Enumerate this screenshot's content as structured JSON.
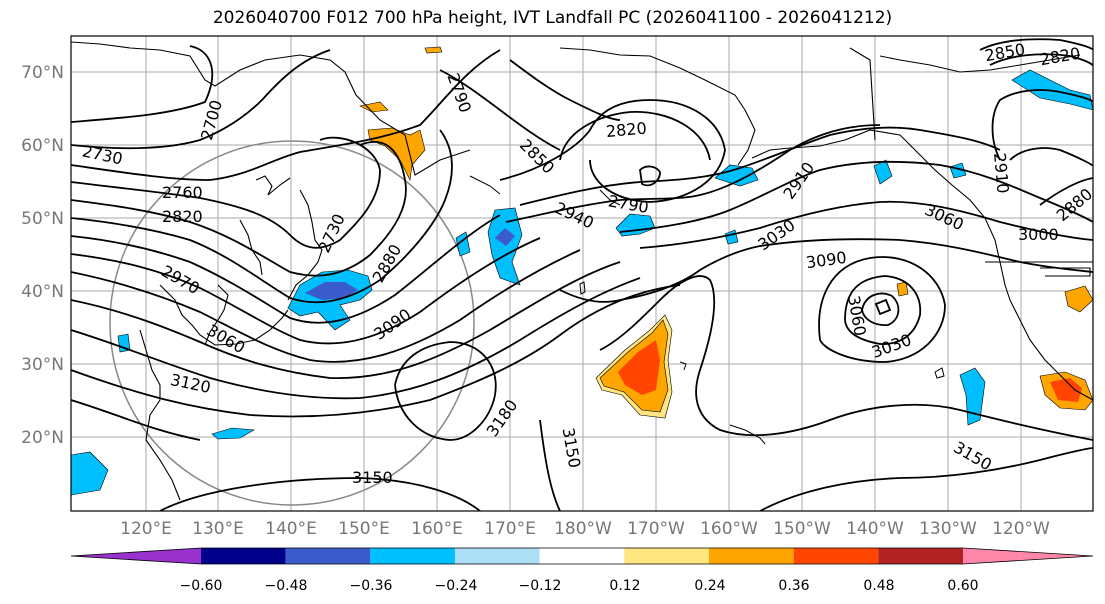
{
  "title": "2026040700 F012 700 hPa height, IVT Landfall PC (2026041100 - 2026041212)",
  "lat_labels": [
    "70°N",
    "60°N",
    "50°N",
    "40°N",
    "30°N",
    "20°N"
  ],
  "lon_labels": [
    "120°E",
    "130°E",
    "140°E",
    "150°E",
    "160°E",
    "170°E",
    "180°W",
    "170°W",
    "160°W",
    "150°W",
    "140°W",
    "130°W",
    "120°W"
  ],
  "contour_labels": [
    "2700",
    "2730",
    "2760",
    "2820",
    "2970",
    "3060",
    "3120",
    "2730",
    "2880",
    "3090",
    "2790",
    "2820",
    "2850",
    "2940",
    "2790",
    "2910",
    "3030",
    "3090",
    "3060",
    "3030",
    "3180",
    "3150",
    "3150",
    "2910",
    "2880",
    "3000",
    "3060",
    "3150",
    "2850",
    "2820"
  ],
  "colorbar": {
    "ticks": [
      "−0.60",
      "−0.48",
      "−0.36",
      "−0.24",
      "−0.12",
      "0.12",
      "0.24",
      "0.36",
      "0.48",
      "0.60"
    ],
    "colors": [
      "#9932CC",
      "#00008B",
      "#3A5BCC",
      "#00BFFF",
      "#ADDFF7",
      "#FFFFFF",
      "#FFE680",
      "#FFA500",
      "#FF4500",
      "#B22222",
      "#FF88AA"
    ]
  }
}
